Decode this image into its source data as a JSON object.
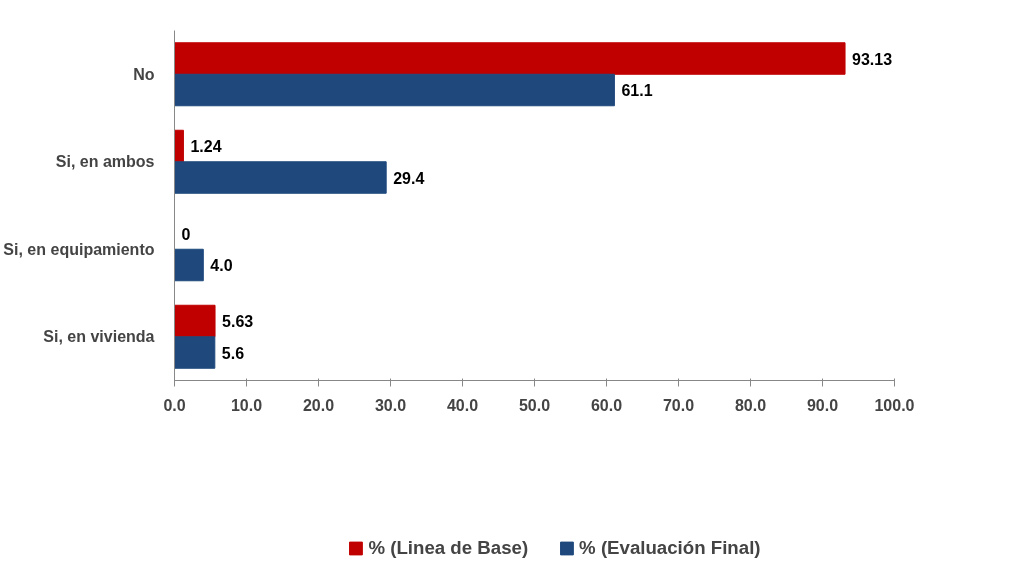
{
  "chart_data": {
    "type": "bar",
    "orientation": "horizontal",
    "categories": [
      "No",
      "Si, en ambos",
      "Si, en equipamiento",
      "Si, en vivienda"
    ],
    "series": [
      {
        "name": "% (Linea de Base)",
        "color": "#c00000",
        "values": [
          93.13,
          1.24,
          0,
          5.63
        ],
        "value_labels": [
          "93.13",
          "1.24",
          "0",
          "5.63"
        ]
      },
      {
        "name": "% (Evaluación Final)",
        "color": "#1f497d",
        "values": [
          61.1,
          29.4,
          4.0,
          5.6
        ],
        "value_labels": [
          "61.1",
          "29.4",
          "4.0",
          "5.6"
        ]
      }
    ],
    "xlim": [
      0,
      100
    ],
    "xticks": [
      {
        "value": 0,
        "label": "0.0"
      },
      {
        "value": 10,
        "label": "10.0"
      },
      {
        "value": 20,
        "label": "20.0"
      },
      {
        "value": 30,
        "label": "30.0"
      },
      {
        "value": 40,
        "label": "40.0"
      },
      {
        "value": 50,
        "label": "50.0"
      },
      {
        "value": 60,
        "label": "60.0"
      },
      {
        "value": 70,
        "label": "70.0"
      },
      {
        "value": 80,
        "label": "80.0"
      },
      {
        "value": 90,
        "label": "90.0"
      },
      {
        "value": 100,
        "label": "100.0"
      }
    ],
    "grid": false,
    "legend": "bottom"
  }
}
